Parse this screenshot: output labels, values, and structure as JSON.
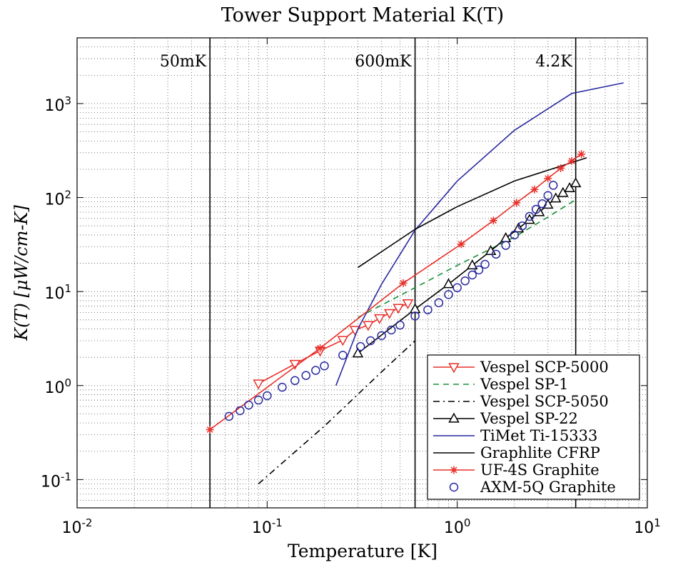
{
  "chart_data": {
    "type": "line",
    "title": "Tower Support Material K(T)",
    "xlabel": "Temperature [K]",
    "ylabel": "K(T) [μW/cm-K]",
    "xscale": "log",
    "yscale": "log",
    "xlim": [
      0.01,
      10
    ],
    "ylim": [
      0.05,
      5000
    ],
    "grid": true,
    "legend_position": "bottom-right",
    "xticks": [
      {
        "value": 0.01,
        "base": "10",
        "exp": "-2"
      },
      {
        "value": 0.1,
        "base": "10",
        "exp": "-1"
      },
      {
        "value": 1,
        "base": "10",
        "exp": "0"
      },
      {
        "value": 10,
        "base": "10",
        "exp": "1"
      }
    ],
    "yticks": [
      {
        "value": 0.1,
        "base": "10",
        "exp": "-1"
      },
      {
        "value": 1,
        "base": "10",
        "exp": "0"
      },
      {
        "value": 10,
        "base": "10",
        "exp": "1"
      },
      {
        "value": 100,
        "base": "10",
        "exp": "2"
      },
      {
        "value": 1000,
        "base": "10",
        "exp": "3"
      }
    ],
    "vlines": [
      {
        "x": 0.05,
        "label": "50mK"
      },
      {
        "x": 0.6,
        "label": "600mK"
      },
      {
        "x": 4.2,
        "label": "4.2K"
      }
    ],
    "series": [
      {
        "name": "Vespel SCP-5000",
        "color": "#e8302a",
        "line": "solid",
        "marker": "triangle-down",
        "x": [
          0.09,
          0.14,
          0.19,
          0.25,
          0.29,
          0.34,
          0.39,
          0.44,
          0.49,
          0.55
        ],
        "y": [
          1.05,
          1.7,
          2.35,
          3.05,
          3.9,
          4.4,
          5.2,
          5.9,
          6.7,
          7.5
        ]
      },
      {
        "name": "Vespel SP-1",
        "color": "#1a8f3a",
        "line": "dashed",
        "marker": "none",
        "x": [
          0.3,
          0.6,
          1.0,
          2.0,
          3.0,
          4.2
        ],
        "y": [
          5.3,
          11.0,
          19.0,
          38.0,
          62.0,
          95.0
        ]
      },
      {
        "name": "Vespel SCP-5050",
        "color": "#000000",
        "line": "dashdot",
        "marker": "none",
        "x": [
          0.09,
          0.2,
          0.4,
          0.6
        ],
        "y": [
          0.09,
          0.37,
          1.4,
          3.0
        ]
      },
      {
        "name": "Vespel SP-22",
        "color": "#000000",
        "line": "solid",
        "marker": "triangle-up",
        "x": [
          0.3,
          0.6,
          0.9,
          1.2,
          1.5,
          1.8,
          2.1,
          2.4,
          2.7,
          3.0,
          3.3,
          3.6,
          3.9,
          4.2
        ],
        "y": [
          2.2,
          6.5,
          12.0,
          19.0,
          27.0,
          37.0,
          47.0,
          58.0,
          70.0,
          84.0,
          98.0,
          112.0,
          126.0,
          142.0
        ]
      },
      {
        "name": "TiMet Ti-15333",
        "color": "#2a2aa0",
        "line": "solid",
        "marker": "none",
        "x": [
          0.23,
          0.3,
          0.4,
          0.6,
          1.0,
          2.0,
          4.0,
          7.5
        ],
        "y": [
          1.0,
          4.0,
          12.0,
          45.0,
          150.0,
          520.0,
          1280.0,
          1660.0
        ]
      },
      {
        "name": "Graphlite CFRP",
        "color": "#000000",
        "line": "solid",
        "marker": "none",
        "x": [
          0.3,
          0.6,
          1.0,
          2.0,
          4.8
        ],
        "y": [
          18.0,
          46.0,
          80.0,
          150.0,
          265.0
        ]
      },
      {
        "name": "UF-4S Graphite",
        "color": "#e8302a",
        "line": "solid",
        "marker": "star",
        "x": [
          0.05,
          0.19,
          0.52,
          1.05,
          1.55,
          2.05,
          2.55,
          3.0,
          3.5,
          4.0,
          4.5
        ],
        "y": [
          0.34,
          2.5,
          12.3,
          32.0,
          57.0,
          88.0,
          122.0,
          160.0,
          205.0,
          245.0,
          290.0
        ]
      },
      {
        "name": "AXM-5Q Graphite",
        "color": "#2a2aa0",
        "line": "none",
        "marker": "circle",
        "x": [
          0.063,
          0.072,
          0.08,
          0.09,
          0.1,
          0.12,
          0.14,
          0.16,
          0.18,
          0.2,
          0.25,
          0.31,
          0.35,
          0.4,
          0.45,
          0.5,
          0.6,
          0.7,
          0.8,
          0.9,
          1.0,
          1.1,
          1.2,
          1.3,
          1.4,
          1.6,
          1.8,
          2.0,
          2.2,
          2.4,
          2.6,
          2.8,
          3.0,
          3.2
        ],
        "y": [
          0.47,
          0.54,
          0.62,
          0.7,
          0.78,
          0.96,
          1.13,
          1.28,
          1.45,
          1.62,
          2.1,
          2.6,
          3.0,
          3.4,
          3.9,
          4.4,
          5.5,
          6.4,
          7.6,
          9.3,
          11.0,
          13.0,
          15.0,
          17.0,
          19.5,
          25.0,
          31.0,
          40.0,
          50.0,
          63.0,
          75.0,
          86.0,
          105.0,
          135.0
        ]
      }
    ]
  }
}
